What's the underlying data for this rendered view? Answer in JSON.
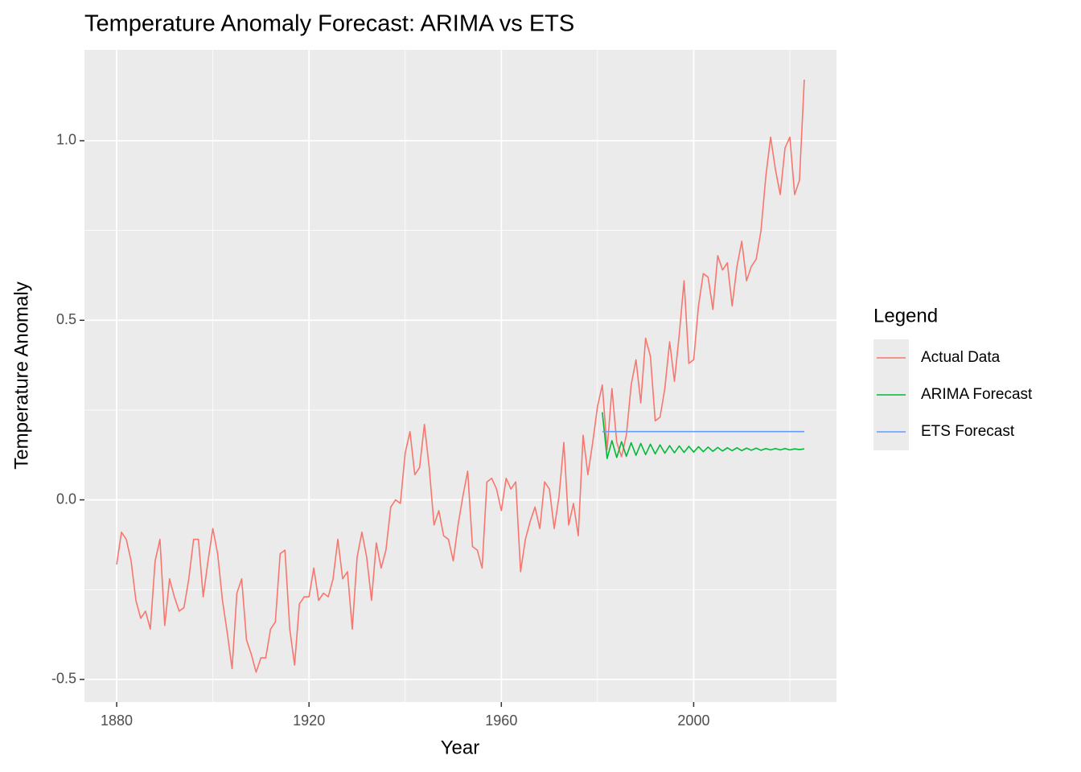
{
  "chart_data": {
    "type": "line",
    "title": "Temperature Anomaly Forecast: ARIMA vs ETS",
    "x_label": "Year",
    "y_label": "Temperature Anomaly",
    "legend_title": "Legend",
    "legend_position": "right",
    "xlim": [
      1873.3,
      2029.7
    ],
    "ylim": [
      -0.563,
      1.253
    ],
    "xticks": [
      1880,
      1920,
      1960,
      2000
    ],
    "yticks": [
      {
        "value": -0.5,
        "label": "-0.5"
      },
      {
        "value": 0,
        "label": "0.0"
      },
      0.5,
      {
        "value": 1,
        "label": "1.0"
      }
    ],
    "x_minor_grid": [
      1900,
      1940,
      1980,
      2020
    ],
    "y_minor_grid": [
      -0.25,
      0.25,
      0.75
    ],
    "grid": true,
    "series": [
      {
        "name": "Actual Data",
        "color": "#F8766D",
        "x": [
          1880,
          1881,
          1882,
          1883,
          1884,
          1885,
          1886,
          1887,
          1888,
          1889,
          1890,
          1891,
          1892,
          1893,
          1894,
          1895,
          1896,
          1897,
          1898,
          1899,
          1900,
          1901,
          1902,
          1903,
          1904,
          1905,
          1906,
          1907,
          1908,
          1909,
          1910,
          1911,
          1912,
          1913,
          1914,
          1915,
          1916,
          1917,
          1918,
          1919,
          1920,
          1921,
          1922,
          1923,
          1924,
          1925,
          1926,
          1927,
          1928,
          1929,
          1930,
          1931,
          1932,
          1933,
          1934,
          1935,
          1936,
          1937,
          1938,
          1939,
          1940,
          1941,
          1942,
          1943,
          1944,
          1945,
          1946,
          1947,
          1948,
          1949,
          1950,
          1951,
          1952,
          1953,
          1954,
          1955,
          1956,
          1957,
          1958,
          1959,
          1960,
          1961,
          1962,
          1963,
          1964,
          1965,
          1966,
          1967,
          1968,
          1969,
          1970,
          1971,
          1972,
          1973,
          1974,
          1975,
          1976,
          1977,
          1978,
          1979,
          1980,
          1981,
          1982,
          1983,
          1984,
          1985,
          1986,
          1987,
          1988,
          1989,
          1990,
          1991,
          1992,
          1993,
          1994,
          1995,
          1996,
          1997,
          1998,
          1999,
          2000,
          2001,
          2002,
          2003,
          2004,
          2005,
          2006,
          2007,
          2008,
          2009,
          2010,
          2011,
          2012,
          2013,
          2014,
          2015,
          2016,
          2017,
          2018,
          2019,
          2020,
          2021,
          2022,
          2023
        ],
        "values": [
          -0.18,
          -0.09,
          -0.11,
          -0.17,
          -0.28,
          -0.33,
          -0.31,
          -0.36,
          -0.17,
          -0.11,
          -0.35,
          -0.22,
          -0.27,
          -0.31,
          -0.3,
          -0.22,
          -0.11,
          -0.11,
          -0.27,
          -0.17,
          -0.08,
          -0.15,
          -0.28,
          -0.37,
          -0.47,
          -0.26,
          -0.22,
          -0.39,
          -0.43,
          -0.48,
          -0.44,
          -0.44,
          -0.36,
          -0.34,
          -0.15,
          -0.14,
          -0.36,
          -0.46,
          -0.29,
          -0.27,
          -0.27,
          -0.19,
          -0.28,
          -0.26,
          -0.27,
          -0.22,
          -0.11,
          -0.22,
          -0.2,
          -0.36,
          -0.16,
          -0.09,
          -0.16,
          -0.28,
          -0.12,
          -0.19,
          -0.14,
          -0.02,
          0.0,
          -0.01,
          0.13,
          0.19,
          0.07,
          0.09,
          0.21,
          0.09,
          -0.07,
          -0.03,
          -0.1,
          -0.11,
          -0.17,
          -0.07,
          0.01,
          0.08,
          -0.13,
          -0.14,
          -0.19,
          0.05,
          0.06,
          0.03,
          -0.03,
          0.06,
          0.03,
          0.05,
          -0.2,
          -0.11,
          -0.06,
          -0.02,
          -0.08,
          0.05,
          0.03,
          -0.08,
          0.01,
          0.16,
          -0.07,
          -0.01,
          -0.1,
          0.18,
          0.07,
          0.16,
          0.26,
          0.32,
          0.14,
          0.31,
          0.16,
          0.12,
          0.18,
          0.32,
          0.39,
          0.27,
          0.45,
          0.4,
          0.22,
          0.23,
          0.31,
          0.44,
          0.33,
          0.46,
          0.61,
          0.38,
          0.39,
          0.54,
          0.63,
          0.62,
          0.53,
          0.68,
          0.64,
          0.66,
          0.54,
          0.65,
          0.72,
          0.61,
          0.65,
          0.67,
          0.75,
          0.9,
          1.01,
          0.92,
          0.85,
          0.98,
          1.01,
          0.85,
          0.89,
          1.17
        ]
      },
      {
        "name": "ARIMA Forecast",
        "color": "#00BA38",
        "x": [
          1981,
          1982,
          1983,
          1984,
          1985,
          1986,
          1987,
          1988,
          1989,
          1990,
          1991,
          1992,
          1993,
          1994,
          1995,
          1996,
          1997,
          1998,
          1999,
          2000,
          2001,
          2002,
          2003,
          2004,
          2005,
          2006,
          2007,
          2008,
          2009,
          2010,
          2011,
          2012,
          2013,
          2014,
          2015,
          2016,
          2017,
          2018,
          2019,
          2020,
          2021,
          2022,
          2023
        ],
        "values": [
          0.244,
          0.115,
          0.165,
          0.118,
          0.162,
          0.121,
          0.159,
          0.124,
          0.157,
          0.126,
          0.155,
          0.128,
          0.153,
          0.13,
          0.151,
          0.131,
          0.15,
          0.132,
          0.149,
          0.133,
          0.148,
          0.134,
          0.147,
          0.135,
          0.146,
          0.136,
          0.145,
          0.137,
          0.145,
          0.137,
          0.144,
          0.138,
          0.144,
          0.138,
          0.143,
          0.139,
          0.143,
          0.139,
          0.143,
          0.139,
          0.142,
          0.14,
          0.142
        ]
      },
      {
        "name": "ETS Forecast",
        "color": "#619CFF",
        "x": [
          1981,
          1982,
          1983,
          1984,
          1985,
          1986,
          1987,
          1988,
          1989,
          1990,
          1991,
          1992,
          1993,
          1994,
          1995,
          1996,
          1997,
          1998,
          1999,
          2000,
          2001,
          2002,
          2003,
          2004,
          2005,
          2006,
          2007,
          2008,
          2009,
          2010,
          2011,
          2012,
          2013,
          2014,
          2015,
          2016,
          2017,
          2018,
          2019,
          2020,
          2021,
          2022,
          2023
        ],
        "values": [
          0.19,
          0.19,
          0.19,
          0.19,
          0.19,
          0.19,
          0.19,
          0.19,
          0.19,
          0.19,
          0.19,
          0.19,
          0.19,
          0.19,
          0.19,
          0.19,
          0.19,
          0.19,
          0.19,
          0.19,
          0.19,
          0.19,
          0.19,
          0.19,
          0.19,
          0.19,
          0.19,
          0.19,
          0.19,
          0.19,
          0.19,
          0.19,
          0.19,
          0.19,
          0.19,
          0.19,
          0.19,
          0.19,
          0.19,
          0.19,
          0.19,
          0.19,
          0.19
        ]
      }
    ]
  }
}
